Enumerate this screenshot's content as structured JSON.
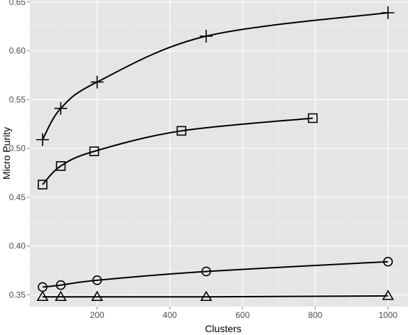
{
  "chart_data": {
    "type": "line",
    "xlabel": "Clusters",
    "ylabel": "Micro Purity",
    "xlim": [
      15,
      1055
    ],
    "ylim": [
      0.338,
      0.652
    ],
    "x_ticks": [
      200,
      400,
      600,
      800,
      1000
    ],
    "x_tick_labels": [
      "200",
      "400",
      "600",
      "800",
      "1000"
    ],
    "y_ticks": [
      0.35,
      0.4,
      0.45,
      0.5,
      0.55,
      0.6,
      0.65
    ],
    "y_tick_labels": [
      "0.35",
      "0.40",
      "0.45",
      "0.50",
      "0.55",
      "0.60",
      "0.65"
    ],
    "grid": true,
    "background": "#e5e5e5",
    "grid_color": "#ffffff",
    "line_color": "#000000",
    "series": [
      {
        "marker": "plus",
        "x": [
          50,
          100,
          200,
          500,
          1000
        ],
        "y": [
          0.509,
          0.541,
          0.568,
          0.615,
          0.639
        ]
      },
      {
        "marker": "square",
        "x": [
          50,
          100,
          192,
          432,
          793
        ],
        "y": [
          0.463,
          0.482,
          0.497,
          0.518,
          0.531
        ]
      },
      {
        "marker": "circle",
        "x": [
          50,
          100,
          200,
          500,
          1000
        ],
        "y": [
          0.358,
          0.36,
          0.365,
          0.374,
          0.384
        ]
      },
      {
        "marker": "triangle",
        "x": [
          50,
          100,
          200,
          500,
          1000
        ],
        "y": [
          0.348,
          0.348,
          0.348,
          0.348,
          0.349
        ]
      }
    ]
  }
}
